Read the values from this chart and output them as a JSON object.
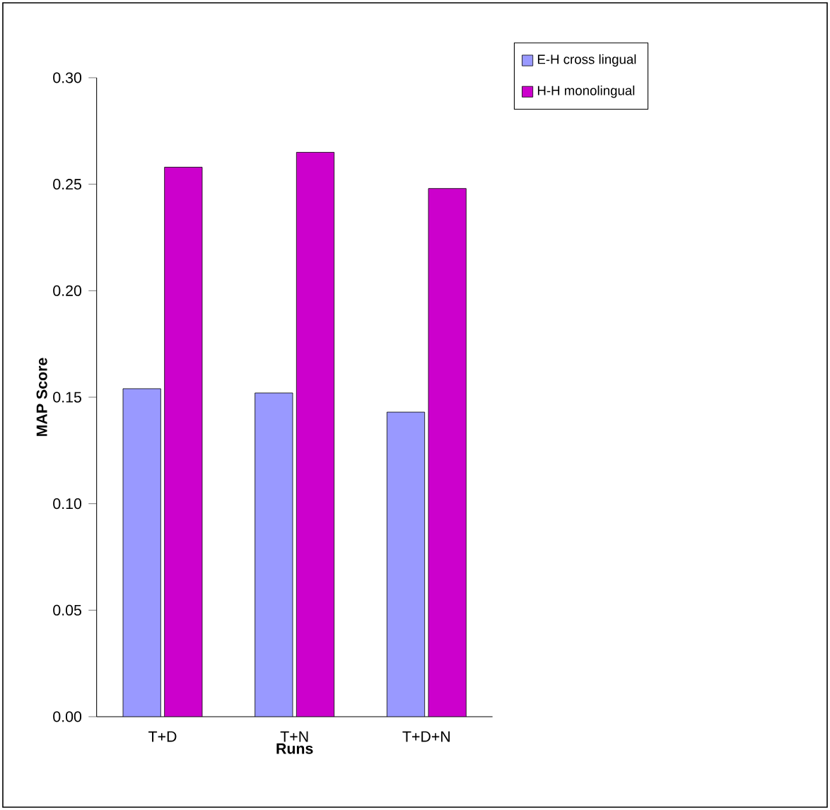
{
  "chart_data": {
    "type": "bar",
    "xlabel": "Runs",
    "ylabel": "MAP Score",
    "categories": [
      "T+D",
      "T+N",
      "T+D+N"
    ],
    "series": [
      {
        "name": "E-H cross lingual",
        "color": "#9999ff",
        "values": [
          0.154,
          0.152,
          0.143
        ]
      },
      {
        "name": "H-H monolingual",
        "color": "#cc00cc",
        "values": [
          0.258,
          0.265,
          0.248
        ]
      }
    ],
    "ylim": [
      0,
      0.3
    ],
    "yticks": [
      {
        "value": 0,
        "label": "0.00"
      },
      {
        "value": 0.05,
        "label": "0.05"
      },
      {
        "value": 0.1,
        "label": "0.10"
      },
      {
        "value": 0.15,
        "label": "0.15"
      },
      {
        "value": 0.2,
        "label": "0.20"
      },
      {
        "value": 0.25,
        "label": "0.25"
      },
      {
        "value": 0.3,
        "label": "0.30"
      }
    ],
    "legend": "right",
    "grid": false
  }
}
